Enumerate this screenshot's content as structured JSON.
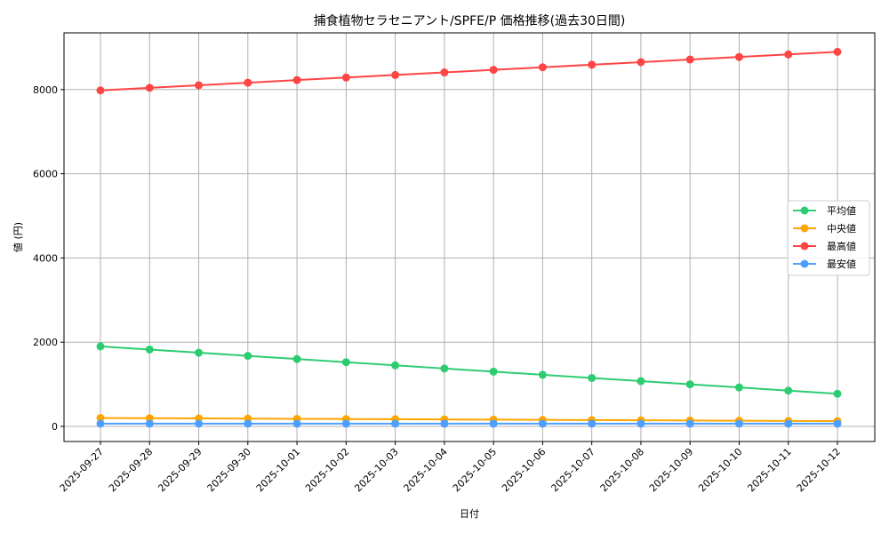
{
  "chart_data": {
    "type": "line",
    "title": "捕食植物セラセニアント/SPFE/P 価格推移(過去30日間)",
    "xlabel": "日付",
    "ylabel": "値 (円)",
    "ylim": [
      -359,
      9346
    ],
    "yticks": [
      0,
      2000,
      4000,
      6000,
      8000
    ],
    "grid": true,
    "legend_position": "center-right",
    "x": [
      "2025-09-27",
      "2025-09-28",
      "2025-09-29",
      "2025-09-30",
      "2025-10-01",
      "2025-10-02",
      "2025-10-03",
      "2025-10-04",
      "2025-10-05",
      "2025-10-06",
      "2025-10-07",
      "2025-10-08",
      "2025-10-09",
      "2025-10-10",
      "2025-10-11",
      "2025-10-12"
    ],
    "series": [
      {
        "name": "平均値",
        "color": "#2ecc71",
        "values": [
          1900,
          1825,
          1750,
          1675,
          1600,
          1525,
          1450,
          1375,
          1300,
          1225,
          1150,
          1075,
          1000,
          925,
          850,
          775
        ]
      },
      {
        "name": "中央値",
        "color": "#ffa500",
        "values": [
          200,
          195,
          190,
          185,
          180,
          175,
          170,
          165,
          160,
          155,
          150,
          145,
          140,
          135,
          130,
          125
        ]
      },
      {
        "name": "最高値",
        "color": "#ff4444",
        "values": [
          7980,
          8041,
          8102,
          8163,
          8224,
          8285,
          8346,
          8407,
          8468,
          8529,
          8590,
          8651,
          8712,
          8773,
          8834,
          8895
        ]
      },
      {
        "name": "最安値",
        "color": "#4d9fff",
        "values": [
          65,
          65,
          65,
          65,
          65,
          65,
          65,
          65,
          65,
          65,
          65,
          65,
          65,
          65,
          65,
          65
        ]
      }
    ]
  }
}
